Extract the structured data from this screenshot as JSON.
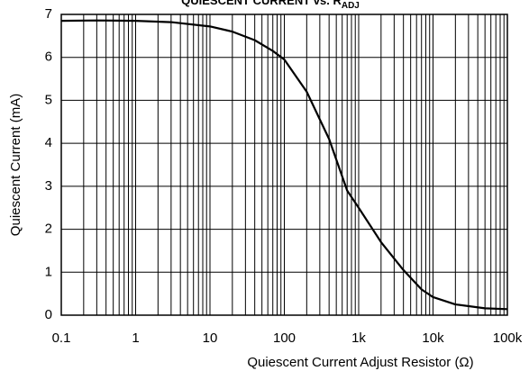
{
  "chart_data": {
    "type": "line",
    "title": "QUIESCENT CURRENT vs. R",
    "title_subscript": "ADJ",
    "x_label": "Quiescent Current Adjust Resistor (Ω)",
    "y_label": "Quiescent Current (mA)",
    "x": [
      0.1,
      0.3,
      1,
      3,
      10,
      20,
      40,
      70,
      100,
      200,
      400,
      700,
      1000,
      2000,
      4000,
      7000,
      10000,
      20000,
      50000,
      100000
    ],
    "series": [
      {
        "name": "Quiescent Current",
        "color": "#000000",
        "values": [
          6.85,
          6.86,
          6.85,
          6.82,
          6.72,
          6.6,
          6.4,
          6.15,
          5.95,
          5.2,
          4.1,
          2.9,
          2.5,
          1.7,
          1.05,
          0.6,
          0.42,
          0.25,
          0.16,
          0.14
        ]
      }
    ],
    "xlog": true,
    "xlim": [
      0.1,
      100000
    ],
    "xticks": [
      0.1,
      1,
      10,
      100,
      {
        "value": 1000,
        "label": "1k"
      },
      {
        "value": 10000,
        "label": "10k"
      },
      {
        "value": 100000,
        "label": "100k"
      }
    ],
    "xminorticks": [
      0.2,
      0.3,
      0.4,
      0.5,
      0.6,
      0.7,
      0.8,
      0.9,
      2,
      3,
      4,
      5,
      6,
      7,
      8,
      9,
      20,
      30,
      40,
      50,
      60,
      70,
      80,
      90,
      200,
      300,
      400,
      500,
      600,
      700,
      800,
      900,
      2000,
      3000,
      4000,
      5000,
      6000,
      7000,
      8000,
      9000,
      20000,
      30000,
      40000,
      50000,
      60000,
      70000,
      80000,
      90000
    ],
    "ylim": [
      0,
      7
    ],
    "yticks": [
      0,
      1,
      2,
      3,
      4,
      5,
      6,
      7
    ],
    "grid": true
  }
}
